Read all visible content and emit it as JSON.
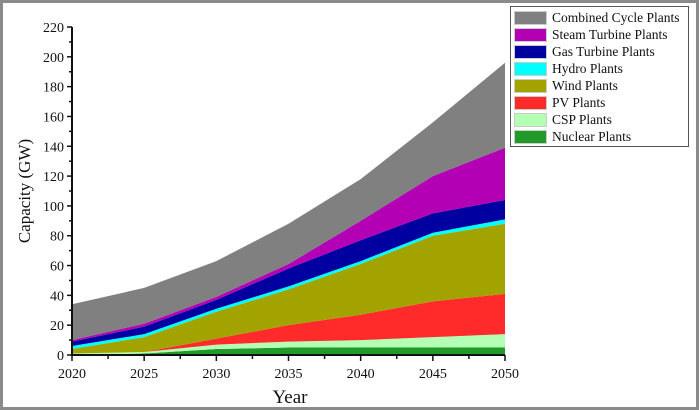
{
  "chart_data": {
    "type": "area",
    "stacked": true,
    "title": "",
    "xlabel": "Year",
    "ylabel": "Capacity (GW)",
    "x": [
      2020,
      2025,
      2030,
      2035,
      2040,
      2045,
      2050
    ],
    "xlim": [
      2020,
      2050
    ],
    "ylim": [
      0,
      220
    ],
    "yticks": [
      0,
      20,
      40,
      60,
      80,
      100,
      120,
      140,
      160,
      180,
      200,
      220
    ],
    "xticks": [
      2020,
      2025,
      2030,
      2035,
      2040,
      2045,
      2050
    ],
    "grid": false,
    "legend_position": "top-right",
    "series": [
      {
        "name": "Nuclear Plants",
        "color": "#229a2a",
        "values": [
          0,
          1,
          4,
          5,
          5,
          5,
          5
        ]
      },
      {
        "name": "CSP Plants",
        "color": "#b3ffb3",
        "values": [
          1,
          1,
          3,
          4,
          5,
          7,
          9
        ]
      },
      {
        "name": "PV Plants",
        "color": "#ff2a2a",
        "values": [
          0,
          0,
          4,
          11,
          17,
          24,
          27
        ]
      },
      {
        "name": "Wind Plants",
        "color": "#a3a300",
        "values": [
          3,
          10,
          18,
          24,
          34,
          44,
          47
        ]
      },
      {
        "name": "Hydro Plants",
        "color": "#00ffff",
        "values": [
          2,
          2,
          2,
          2,
          2,
          2,
          3
        ]
      },
      {
        "name": "Gas Turbine Plants",
        "color": "#0000a0",
        "values": [
          3,
          5,
          6,
          12,
          14,
          13,
          13
        ]
      },
      {
        "name": "Steam Turbine Plants",
        "color": "#b400b4",
        "values": [
          1,
          2,
          2,
          3,
          13,
          25,
          35
        ]
      },
      {
        "name": "Combined Cycle Plants",
        "color": "#808080",
        "values": [
          24,
          24,
          24,
          27,
          28,
          36,
          57
        ]
      }
    ]
  }
}
